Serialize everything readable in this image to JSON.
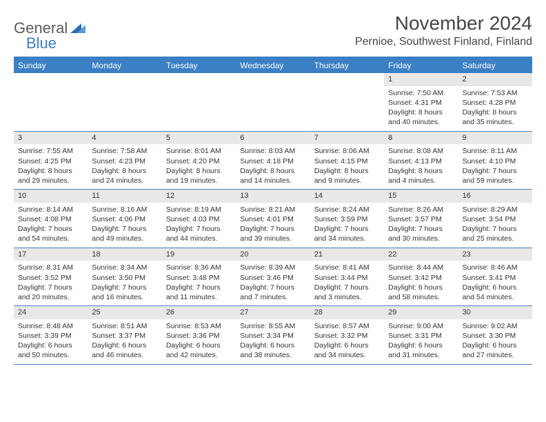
{
  "logo": {
    "general": "General",
    "blue": "Blue"
  },
  "title": "November 2024",
  "location": "Pernioe, Southwest Finland, Finland",
  "colors": {
    "brand_blue": "#3b7fc4",
    "dow_bg": "#3b7fc4",
    "daynum_bg": "#e8e8e8",
    "border_blue": "#4a7fb8",
    "text": "#333333",
    "title_text": "#444444"
  },
  "typography": {
    "title_fontsize_pt": 21,
    "location_fontsize_pt": 12,
    "dow_fontsize_pt": 9,
    "body_fontsize_pt": 8
  },
  "days_of_week": [
    "Sunday",
    "Monday",
    "Tuesday",
    "Wednesday",
    "Thursday",
    "Friday",
    "Saturday"
  ],
  "weeks": [
    [
      {
        "empty": true
      },
      {
        "empty": true
      },
      {
        "empty": true
      },
      {
        "empty": true
      },
      {
        "empty": true
      },
      {
        "num": "1",
        "sunrise": "Sunrise: 7:50 AM",
        "sunset": "Sunset: 4:31 PM",
        "daylight1": "Daylight: 8 hours",
        "daylight2": "and 40 minutes."
      },
      {
        "num": "2",
        "sunrise": "Sunrise: 7:53 AM",
        "sunset": "Sunset: 4:28 PM",
        "daylight1": "Daylight: 8 hours",
        "daylight2": "and 35 minutes."
      }
    ],
    [
      {
        "num": "3",
        "sunrise": "Sunrise: 7:55 AM",
        "sunset": "Sunset: 4:25 PM",
        "daylight1": "Daylight: 8 hours",
        "daylight2": "and 29 minutes."
      },
      {
        "num": "4",
        "sunrise": "Sunrise: 7:58 AM",
        "sunset": "Sunset: 4:23 PM",
        "daylight1": "Daylight: 8 hours",
        "daylight2": "and 24 minutes."
      },
      {
        "num": "5",
        "sunrise": "Sunrise: 8:01 AM",
        "sunset": "Sunset: 4:20 PM",
        "daylight1": "Daylight: 8 hours",
        "daylight2": "and 19 minutes."
      },
      {
        "num": "6",
        "sunrise": "Sunrise: 8:03 AM",
        "sunset": "Sunset: 4:18 PM",
        "daylight1": "Daylight: 8 hours",
        "daylight2": "and 14 minutes."
      },
      {
        "num": "7",
        "sunrise": "Sunrise: 8:06 AM",
        "sunset": "Sunset: 4:15 PM",
        "daylight1": "Daylight: 8 hours",
        "daylight2": "and 9 minutes."
      },
      {
        "num": "8",
        "sunrise": "Sunrise: 8:08 AM",
        "sunset": "Sunset: 4:13 PM",
        "daylight1": "Daylight: 8 hours",
        "daylight2": "and 4 minutes."
      },
      {
        "num": "9",
        "sunrise": "Sunrise: 8:11 AM",
        "sunset": "Sunset: 4:10 PM",
        "daylight1": "Daylight: 7 hours",
        "daylight2": "and 59 minutes."
      }
    ],
    [
      {
        "num": "10",
        "sunrise": "Sunrise: 8:14 AM",
        "sunset": "Sunset: 4:08 PM",
        "daylight1": "Daylight: 7 hours",
        "daylight2": "and 54 minutes."
      },
      {
        "num": "11",
        "sunrise": "Sunrise: 8:16 AM",
        "sunset": "Sunset: 4:06 PM",
        "daylight1": "Daylight: 7 hours",
        "daylight2": "and 49 minutes."
      },
      {
        "num": "12",
        "sunrise": "Sunrise: 8:19 AM",
        "sunset": "Sunset: 4:03 PM",
        "daylight1": "Daylight: 7 hours",
        "daylight2": "and 44 minutes."
      },
      {
        "num": "13",
        "sunrise": "Sunrise: 8:21 AM",
        "sunset": "Sunset: 4:01 PM",
        "daylight1": "Daylight: 7 hours",
        "daylight2": "and 39 minutes."
      },
      {
        "num": "14",
        "sunrise": "Sunrise: 8:24 AM",
        "sunset": "Sunset: 3:59 PM",
        "daylight1": "Daylight: 7 hours",
        "daylight2": "and 34 minutes."
      },
      {
        "num": "15",
        "sunrise": "Sunrise: 8:26 AM",
        "sunset": "Sunset: 3:57 PM",
        "daylight1": "Daylight: 7 hours",
        "daylight2": "and 30 minutes."
      },
      {
        "num": "16",
        "sunrise": "Sunrise: 8:29 AM",
        "sunset": "Sunset: 3:54 PM",
        "daylight1": "Daylight: 7 hours",
        "daylight2": "and 25 minutes."
      }
    ],
    [
      {
        "num": "17",
        "sunrise": "Sunrise: 8:31 AM",
        "sunset": "Sunset: 3:52 PM",
        "daylight1": "Daylight: 7 hours",
        "daylight2": "and 20 minutes."
      },
      {
        "num": "18",
        "sunrise": "Sunrise: 8:34 AM",
        "sunset": "Sunset: 3:50 PM",
        "daylight1": "Daylight: 7 hours",
        "daylight2": "and 16 minutes."
      },
      {
        "num": "19",
        "sunrise": "Sunrise: 8:36 AM",
        "sunset": "Sunset: 3:48 PM",
        "daylight1": "Daylight: 7 hours",
        "daylight2": "and 11 minutes."
      },
      {
        "num": "20",
        "sunrise": "Sunrise: 8:39 AM",
        "sunset": "Sunset: 3:46 PM",
        "daylight1": "Daylight: 7 hours",
        "daylight2": "and 7 minutes."
      },
      {
        "num": "21",
        "sunrise": "Sunrise: 8:41 AM",
        "sunset": "Sunset: 3:44 PM",
        "daylight1": "Daylight: 7 hours",
        "daylight2": "and 3 minutes."
      },
      {
        "num": "22",
        "sunrise": "Sunrise: 8:44 AM",
        "sunset": "Sunset: 3:42 PM",
        "daylight1": "Daylight: 6 hours",
        "daylight2": "and 58 minutes."
      },
      {
        "num": "23",
        "sunrise": "Sunrise: 8:46 AM",
        "sunset": "Sunset: 3:41 PM",
        "daylight1": "Daylight: 6 hours",
        "daylight2": "and 54 minutes."
      }
    ],
    [
      {
        "num": "24",
        "sunrise": "Sunrise: 8:48 AM",
        "sunset": "Sunset: 3:39 PM",
        "daylight1": "Daylight: 6 hours",
        "daylight2": "and 50 minutes."
      },
      {
        "num": "25",
        "sunrise": "Sunrise: 8:51 AM",
        "sunset": "Sunset: 3:37 PM",
        "daylight1": "Daylight: 6 hours",
        "daylight2": "and 46 minutes."
      },
      {
        "num": "26",
        "sunrise": "Sunrise: 8:53 AM",
        "sunset": "Sunset: 3:36 PM",
        "daylight1": "Daylight: 6 hours",
        "daylight2": "and 42 minutes."
      },
      {
        "num": "27",
        "sunrise": "Sunrise: 8:55 AM",
        "sunset": "Sunset: 3:34 PM",
        "daylight1": "Daylight: 6 hours",
        "daylight2": "and 38 minutes."
      },
      {
        "num": "28",
        "sunrise": "Sunrise: 8:57 AM",
        "sunset": "Sunset: 3:32 PM",
        "daylight1": "Daylight: 6 hours",
        "daylight2": "and 34 minutes."
      },
      {
        "num": "29",
        "sunrise": "Sunrise: 9:00 AM",
        "sunset": "Sunset: 3:31 PM",
        "daylight1": "Daylight: 6 hours",
        "daylight2": "and 31 minutes."
      },
      {
        "num": "30",
        "sunrise": "Sunrise: 9:02 AM",
        "sunset": "Sunset: 3:30 PM",
        "daylight1": "Daylight: 6 hours",
        "daylight2": "and 27 minutes."
      }
    ]
  ]
}
